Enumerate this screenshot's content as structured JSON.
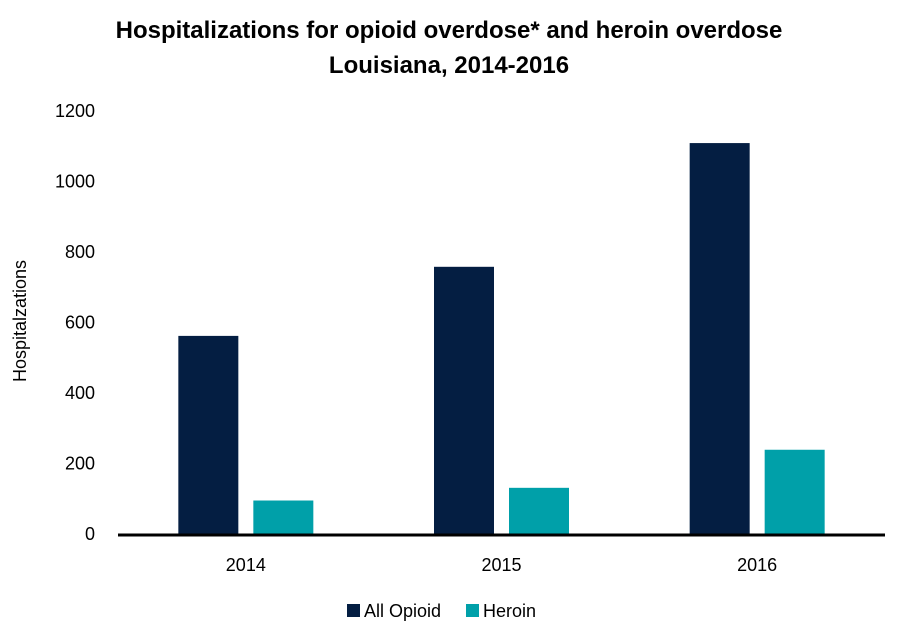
{
  "chart_data": {
    "type": "bar",
    "title_line1": "Hospitalizations for opioid overdose* and heroin overdose",
    "title_line2": "Louisiana, 2014-2016",
    "xlabel": "",
    "ylabel": "Hospitalzations",
    "categories": [
      "2014",
      "2015",
      "2016"
    ],
    "series": [
      {
        "name": "All Opioid",
        "values": [
          562,
          758,
          1109
        ],
        "color": "#041e42"
      },
      {
        "name": "Heroin",
        "values": [
          95,
          131,
          239
        ],
        "color": "#00a0a9"
      }
    ],
    "ylim": [
      0,
      1200
    ],
    "yticks": [
      "0",
      "200",
      "400",
      "600",
      "800",
      "1000",
      "1200"
    ],
    "grid": false,
    "legend_position": "bottom"
  }
}
